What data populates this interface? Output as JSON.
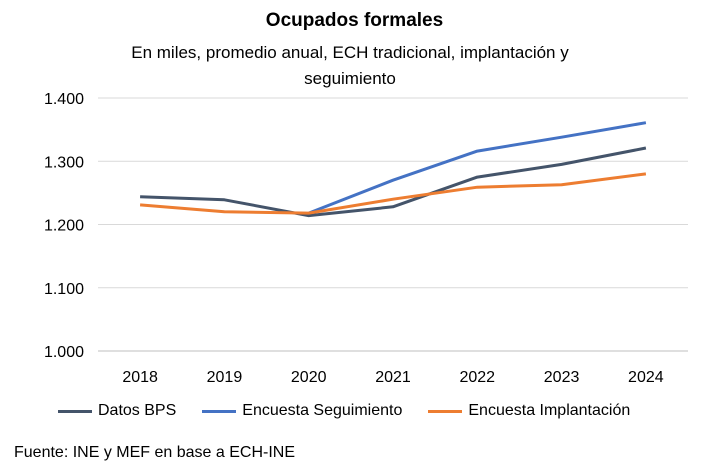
{
  "chart_data": {
    "type": "line",
    "title": "Ocupados formales",
    "subtitle": "En miles, promedio anual, ECH tradicional, implantación y seguimiento",
    "categories": [
      "2018",
      "2019",
      "2020",
      "2021",
      "2022",
      "2023",
      "2024"
    ],
    "y_ticks": [
      "1.000",
      "1.100",
      "1.200",
      "1.300",
      "1.400"
    ],
    "ylim": [
      1000,
      1400
    ],
    "grid": true,
    "legend_position": "bottom",
    "series": [
      {
        "name": "Datos BPS",
        "color": "#44546a",
        "values": [
          1244,
          1239,
          1214,
          1228,
          1275,
          1295,
          1321
        ]
      },
      {
        "name": "Encuesta Seguimiento",
        "color": "#4472c4",
        "values": [
          null,
          null,
          1218,
          1270,
          1316,
          1338,
          1361
        ]
      },
      {
        "name": "Encuesta Implantación",
        "color": "#ed7d31",
        "values": [
          1231,
          1220,
          1218,
          1240,
          1259,
          1263,
          1280
        ]
      }
    ]
  },
  "source": "Fuente:  INE y MEF en base a ECH-INE"
}
